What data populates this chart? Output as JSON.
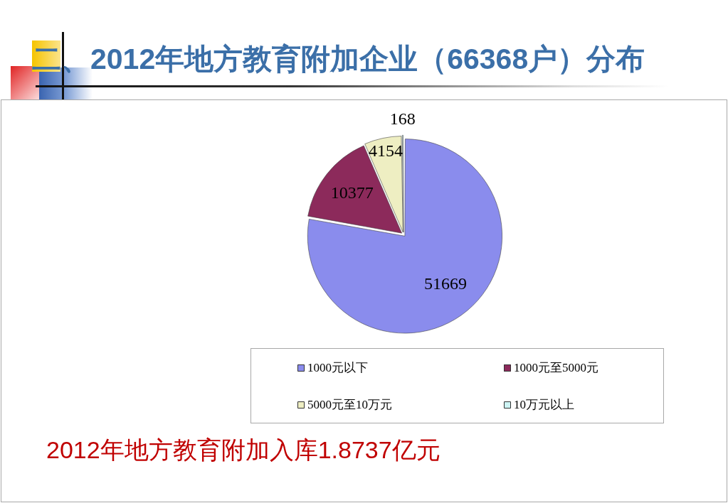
{
  "chart_data": {
    "type": "pie",
    "title": "二、2012年地方教育附加企业（66368户）分布",
    "categories": [
      "1000元以下",
      "1000元至5000元",
      "5000元至10万元",
      "10万元以上"
    ],
    "values": [
      51669,
      10377,
      4154,
      168
    ],
    "colors": [
      "#8a8ced",
      "#8c2a5b",
      "#eeeec2",
      "#cdf4f4"
    ],
    "data_labels": true,
    "legend": "bottom",
    "annotations": [
      "2012年地方教育附加入库1.8737亿元"
    ]
  }
}
